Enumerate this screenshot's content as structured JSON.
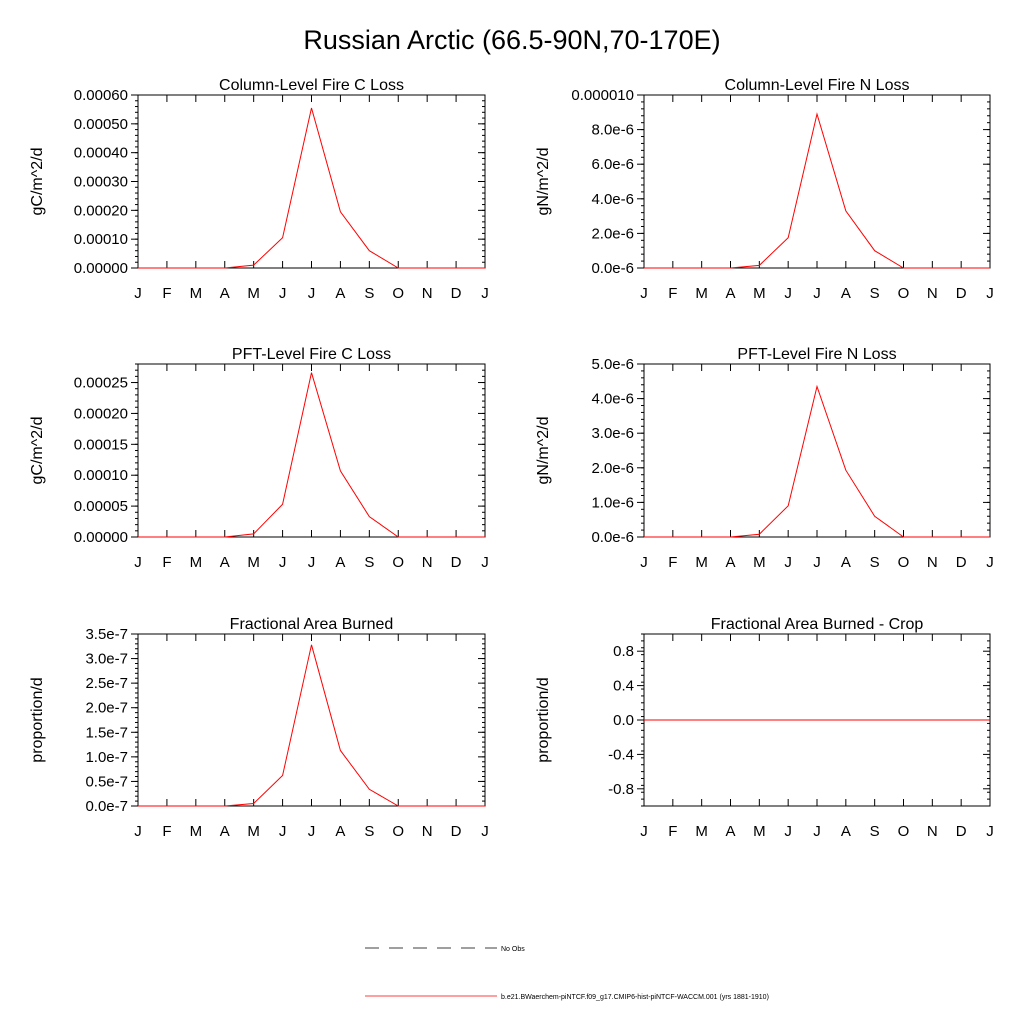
{
  "title": "Russian Arctic (66.5-90N,70-170E)",
  "months": [
    "J",
    "F",
    "M",
    "A",
    "M",
    "J",
    "J",
    "A",
    "S",
    "O",
    "N",
    "D",
    "J"
  ],
  "colors": {
    "model": "#ff0000",
    "obs": "#000000"
  },
  "chart_data": [
    {
      "type": "line",
      "title": "Column-Level Fire C Loss",
      "ylabel": "gC/m^2/d",
      "ylim": [
        0,
        0.0006
      ],
      "yticks": [
        0,
        0.0001,
        0.0002,
        0.0003,
        0.0004,
        0.0005,
        0.0006
      ],
      "ytick_labels": [
        "0.00000",
        "0.00010",
        "0.00020",
        "0.00030",
        "0.00040",
        "0.00050",
        "0.00060"
      ],
      "yminor_step": 2e-05,
      "x": [
        0,
        1,
        2,
        3,
        4,
        5,
        6,
        7,
        8,
        9,
        10,
        11,
        12
      ],
      "series": [
        {
          "name": "b.e21.BWaerchem-piNTCF.f09_g17.CMIP6-hist-piNTCF-WACCM.001 (yrs 1881-1910)",
          "values": [
            0,
            0,
            0,
            0,
            1e-05,
            0.000105,
            0.000555,
            0.000195,
            6e-05,
            0,
            0,
            0,
            0
          ]
        }
      ]
    },
    {
      "type": "line",
      "title": "Column-Level Fire N Loss",
      "ylabel": "gN/m^2/d",
      "ylim": [
        0,
        1e-05
      ],
      "yticks": [
        0,
        2e-06,
        4e-06,
        6e-06,
        8e-06,
        1e-05
      ],
      "ytick_labels": [
        "0.0e-6",
        "2.0e-6",
        "4.0e-6",
        "6.0e-6",
        "8.0e-6",
        "0.000010"
      ],
      "yminor_step": 4e-07,
      "x": [
        0,
        1,
        2,
        3,
        4,
        5,
        6,
        7,
        8,
        9,
        10,
        11,
        12
      ],
      "series": [
        {
          "name": "b.e21.BWaerchem-piNTCF.f09_g17.CMIP6-hist-piNTCF-WACCM.001 (yrs 1881-1910)",
          "values": [
            0,
            0,
            0,
            0,
            1.5e-07,
            1.75e-06,
            8.9e-06,
            3.3e-06,
            1e-06,
            0,
            0,
            0,
            0
          ]
        }
      ]
    },
    {
      "type": "line",
      "title": "PFT-Level Fire C Loss",
      "ylabel": "gC/m^2/d",
      "ylim": [
        0,
        0.00028
      ],
      "yticks": [
        0,
        5e-05,
        0.0001,
        0.00015,
        0.0002,
        0.00025
      ],
      "ytick_labels": [
        "0.00000",
        "0.00005",
        "0.00010",
        "0.00015",
        "0.00020",
        "0.00025"
      ],
      "yminor_step": 1e-05,
      "x": [
        0,
        1,
        2,
        3,
        4,
        5,
        6,
        7,
        8,
        9,
        10,
        11,
        12
      ],
      "series": [
        {
          "name": "b.e21.BWaerchem-piNTCF.f09_g17.CMIP6-hist-piNTCF-WACCM.001 (yrs 1881-1910)",
          "values": [
            0,
            0,
            0,
            0,
            5e-06,
            5.3e-05,
            0.000266,
            0.000107,
            3.3e-05,
            0,
            0,
            0,
            0
          ]
        }
      ]
    },
    {
      "type": "line",
      "title": "PFT-Level Fire N Loss",
      "ylabel": "gN/m^2/d",
      "ylim": [
        0,
        5e-06
      ],
      "yticks": [
        0,
        1e-06,
        2e-06,
        3e-06,
        4e-06,
        5e-06
      ],
      "ytick_labels": [
        "0.0e-6",
        "1.0e-6",
        "2.0e-6",
        "3.0e-6",
        "4.0e-6",
        "5.0e-6"
      ],
      "yminor_step": 2e-07,
      "x": [
        0,
        1,
        2,
        3,
        4,
        5,
        6,
        7,
        8,
        9,
        10,
        11,
        12
      ],
      "series": [
        {
          "name": "b.e21.BWaerchem-piNTCF.f09_g17.CMIP6-hist-piNTCF-WACCM.001 (yrs 1881-1910)",
          "values": [
            0,
            0,
            0,
            0,
            8e-08,
            9e-07,
            4.35e-06,
            1.93e-06,
            6e-07,
            0,
            0,
            0,
            0
          ]
        }
      ]
    },
    {
      "type": "line",
      "title": "Fractional Area Burned",
      "ylabel": "proportion/d",
      "ylim": [
        0,
        3.5e-07
      ],
      "yticks": [
        0,
        5e-08,
        1e-07,
        1.5e-07,
        2e-07,
        2.5e-07,
        3e-07,
        3.5e-07
      ],
      "ytick_labels": [
        "0.0e-7",
        "0.5e-7",
        "1.0e-7",
        "1.5e-7",
        "2.0e-7",
        "2.5e-7",
        "3.0e-7",
        "3.5e-7"
      ],
      "yminor_step": 1e-08,
      "x": [
        0,
        1,
        2,
        3,
        4,
        5,
        6,
        7,
        8,
        9,
        10,
        11,
        12
      ],
      "series": [
        {
          "name": "b.e21.BWaerchem-piNTCF.f09_g17.CMIP6-hist-piNTCF-WACCM.001 (yrs 1881-1910)",
          "values": [
            0,
            0,
            0,
            0,
            5e-09,
            6.2e-08,
            3.28e-07,
            1.13e-07,
            3.4e-08,
            0,
            0,
            0,
            0
          ]
        }
      ]
    },
    {
      "type": "line",
      "title": "Fractional Area Burned - Crop",
      "ylabel": "proportion/d",
      "ylim": [
        -1,
        1
      ],
      "yticks": [
        -0.8,
        -0.4,
        0,
        0.4,
        0.8
      ],
      "ytick_labels": [
        "-0.8",
        "-0.4",
        "0.0",
        "0.4",
        "0.8"
      ],
      "yminor_step": 0.08,
      "x": [
        0,
        1,
        2,
        3,
        4,
        5,
        6,
        7,
        8,
        9,
        10,
        11,
        12
      ],
      "series": [
        {
          "name": "b.e21.BWaerchem-piNTCF.f09_g17.CMIP6-hist-piNTCF-WACCM.001 (yrs 1881-1910)",
          "values": [
            0,
            0,
            0,
            0,
            0,
            0,
            0,
            0,
            0,
            0,
            0,
            0,
            0
          ]
        }
      ]
    }
  ],
  "legend": {
    "placement": "bottom-center",
    "entries": [
      {
        "label": "No Obs",
        "style": "dashed",
        "color": "#000000"
      },
      {
        "label": "b.e21.BWaerchem-piNTCF.f09_g17.CMIP6-hist-piNTCF-WACCM.001 (yrs 1881-1910)",
        "style": "solid",
        "color": "#ff0000"
      }
    ]
  }
}
